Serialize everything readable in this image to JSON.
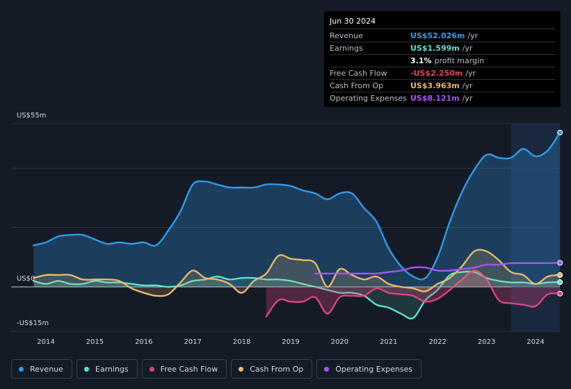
{
  "tooltip": {
    "date": "Jun 30 2024",
    "rows": [
      {
        "label": "Revenue",
        "value": "US$52.026m",
        "unit": "/yr",
        "color": "#2f9ce8"
      },
      {
        "label": "Earnings",
        "value": "US$1.599m",
        "unit": "/yr",
        "color": "#5fe0cc"
      },
      {
        "label": "",
        "value": "3.1%",
        "unit": "profit margin",
        "color": "#ffffff"
      },
      {
        "label": "Free Cash Flow",
        "value": "-US$2.250m",
        "unit": "/yr",
        "color": "#e6455a"
      },
      {
        "label": "Cash From Op",
        "value": "US$3.963m",
        "unit": "/yr",
        "color": "#e8b86a"
      },
      {
        "label": "Operating Expenses",
        "value": "US$8.121m",
        "unit": "/yr",
        "color": "#a855f7"
      }
    ]
  },
  "legend": [
    {
      "label": "Revenue",
      "color": "#2f9ce8"
    },
    {
      "label": "Earnings",
      "color": "#5fe0cc"
    },
    {
      "label": "Free Cash Flow",
      "color": "#d9457f"
    },
    {
      "label": "Cash From Op",
      "color": "#e8b86a"
    },
    {
      "label": "Operating Expenses",
      "color": "#a855f7"
    }
  ],
  "chart_data": {
    "type": "area",
    "y_axis_labels": [
      "US$55m",
      "US$0",
      "-US$15m"
    ],
    "ylim": [
      -15,
      55
    ],
    "xlim": [
      2013.75,
      2024.5
    ],
    "x_tick_labels": [
      "2014",
      "2015",
      "2016",
      "2017",
      "2018",
      "2019",
      "2020",
      "2021",
      "2022",
      "2023",
      "2024"
    ],
    "x_ticks": [
      2014,
      2015,
      2016,
      2017,
      2018,
      2019,
      2020,
      2021,
      2022,
      2023,
      2024
    ],
    "highlight_from": 2023.5,
    "series": [
      {
        "name": "Revenue",
        "color": "#2f9ce8",
        "fill": true,
        "x": [
          2013.75,
          2014,
          2014.25,
          2014.5,
          2014.75,
          2015,
          2015.25,
          2015.5,
          2015.75,
          2016,
          2016.25,
          2016.5,
          2016.75,
          2017,
          2017.25,
          2017.5,
          2017.75,
          2018,
          2018.25,
          2018.5,
          2018.75,
          2019,
          2019.25,
          2019.5,
          2019.75,
          2020,
          2020.25,
          2020.5,
          2020.75,
          2021,
          2021.25,
          2021.5,
          2021.75,
          2022,
          2022.25,
          2022.5,
          2022.75,
          2023,
          2023.25,
          2023.5,
          2023.75,
          2024,
          2024.25,
          2024.5
        ],
        "y": [
          14,
          15,
          17,
          17.5,
          17.5,
          16,
          14.5,
          15,
          14.5,
          15,
          14,
          19,
          25.5,
          34.5,
          35.5,
          34.5,
          33.5,
          33.5,
          33.5,
          34.5,
          34.5,
          34,
          32.5,
          31.5,
          29.5,
          31.5,
          31.5,
          26.5,
          22,
          13,
          7,
          3.5,
          3,
          10,
          22,
          32,
          39.5,
          44.5,
          43.5,
          43.5,
          46.5,
          44,
          46,
          52
        ]
      },
      {
        "name": "Earnings",
        "color": "#5fe0cc",
        "fill": true,
        "x": [
          2013.75,
          2014,
          2014.25,
          2014.5,
          2014.75,
          2015,
          2015.25,
          2015.5,
          2015.75,
          2016,
          2016.25,
          2016.5,
          2016.75,
          2017,
          2017.25,
          2017.5,
          2017.75,
          2018,
          2018.25,
          2018.5,
          2018.75,
          2019,
          2019.25,
          2019.5,
          2019.75,
          2020,
          2020.25,
          2020.5,
          2020.75,
          2021,
          2021.25,
          2021.5,
          2021.75,
          2022,
          2022.25,
          2022.5,
          2022.75,
          2023,
          2023.25,
          2023.5,
          2023.75,
          2024,
          2024.25,
          2024.5
        ],
        "y": [
          2,
          1,
          2,
          1,
          1,
          2,
          1.5,
          1.5,
          1,
          0.5,
          0.5,
          0,
          0.5,
          2,
          2.5,
          3.5,
          2.5,
          3,
          3,
          2.5,
          2.5,
          2,
          1,
          0,
          -1,
          -2,
          -2,
          -3,
          -6,
          -7,
          -9,
          -10.5,
          -4.5,
          -1,
          4,
          5,
          5,
          3,
          2,
          1.5,
          1.5,
          1,
          1.5,
          1.6
        ]
      },
      {
        "name": "Free Cash Flow",
        "color": "#d9457f",
        "fill": true,
        "x": [
          2018.5,
          2018.75,
          2019,
          2019.25,
          2019.5,
          2019.75,
          2020,
          2020.25,
          2020.5,
          2020.75,
          2021,
          2021.25,
          2021.5,
          2021.75,
          2022,
          2022.25,
          2022.5,
          2022.75,
          2023,
          2023.25,
          2023.5,
          2023.75,
          2024,
          2024.25,
          2024.5
        ],
        "y": [
          -10,
          -4.5,
          -5,
          -5,
          -3.5,
          -9,
          -3.5,
          -3,
          -3,
          -0.5,
          -2,
          -2.5,
          -3,
          -5,
          -4,
          -1,
          2.5,
          5.5,
          2.5,
          -4.5,
          -5.5,
          -6,
          -6.5,
          -2.5,
          -2.25
        ]
      },
      {
        "name": "Cash From Op",
        "color": "#e8b86a",
        "fill": true,
        "x": [
          2013.75,
          2014,
          2014.25,
          2014.5,
          2014.75,
          2015,
          2015.25,
          2015.5,
          2015.75,
          2016,
          2016.25,
          2016.5,
          2016.75,
          2017,
          2017.25,
          2017.5,
          2017.75,
          2018,
          2018.25,
          2018.5,
          2018.75,
          2019,
          2019.25,
          2019.5,
          2019.75,
          2020,
          2020.25,
          2020.5,
          2020.75,
          2021,
          2021.25,
          2021.5,
          2021.75,
          2022,
          2022.25,
          2022.5,
          2022.75,
          2023,
          2023.25,
          2023.5,
          2023.75,
          2024,
          2024.25,
          2024.5
        ],
        "y": [
          3,
          4,
          4,
          4,
          2.5,
          2.5,
          2.5,
          2,
          -0.5,
          -2,
          -3,
          -2.5,
          1.5,
          5.5,
          3,
          2.5,
          1,
          -2,
          2,
          4.5,
          10.5,
          9.5,
          9,
          8,
          0,
          6,
          4,
          2.5,
          3.5,
          1,
          0,
          -0.5,
          -1.5,
          1,
          3,
          7,
          12,
          12,
          9,
          5,
          4,
          1,
          3.5,
          4
        ]
      },
      {
        "name": "Operating Expenses",
        "color": "#a855f7",
        "fill": false,
        "x": [
          2019.5,
          2019.75,
          2020,
          2020.25,
          2020.5,
          2020.75,
          2021,
          2021.25,
          2021.5,
          2021.75,
          2022,
          2022.25,
          2022.5,
          2022.75,
          2023,
          2023.25,
          2023.5,
          2023.75,
          2024,
          2024.25,
          2024.5
        ],
        "y": [
          4.5,
          4.5,
          4.5,
          4.5,
          4.5,
          4.5,
          5,
          5.5,
          6.5,
          6.5,
          5.5,
          5.5,
          6,
          6.5,
          7.5,
          7.5,
          8,
          8,
          8,
          8,
          8.1
        ]
      }
    ]
  }
}
